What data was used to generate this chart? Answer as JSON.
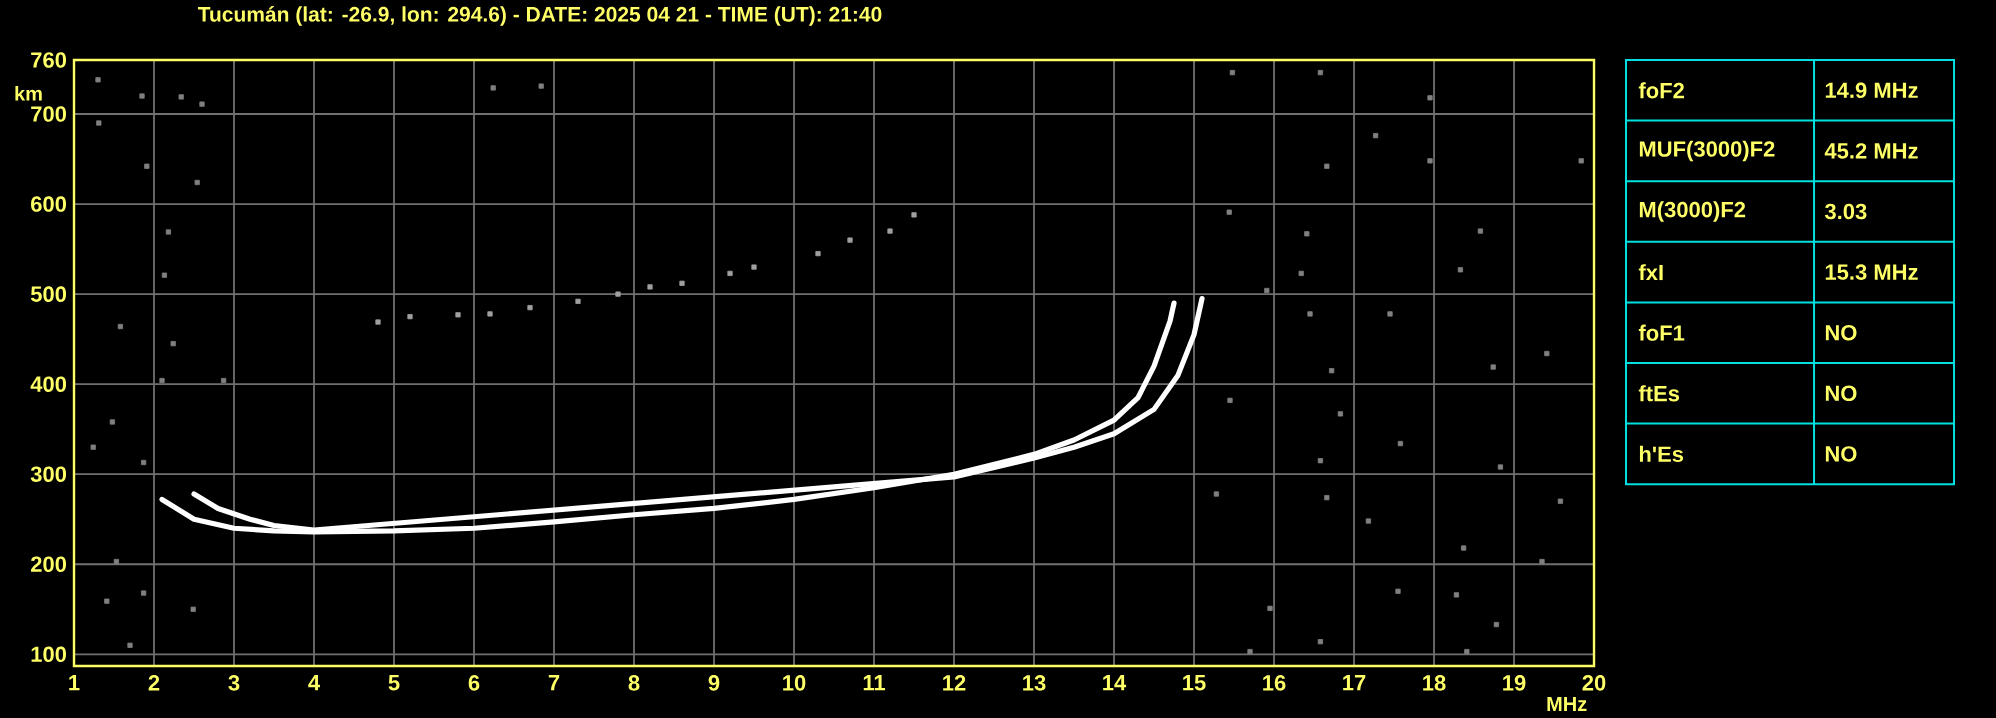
{
  "chart_data": [
    {
      "type": "line",
      "title": "Tucumán (lat: -26.9, lon: 294.6) - DATE: 2025 04 21 - TIME (UT): 21:40",
      "xlabel": "MHz",
      "ylabel": "km",
      "xlim": [
        1,
        20
      ],
      "ylim": [
        87,
        760
      ],
      "xticks": [
        1,
        2,
        3,
        4,
        5,
        6,
        7,
        8,
        9,
        10,
        11,
        12,
        13,
        14,
        15,
        16,
        17,
        18,
        19,
        20
      ],
      "yticks": [
        100,
        200,
        300,
        400,
        500,
        600,
        700,
        760
      ],
      "grid": true,
      "series": [
        {
          "type": "line",
          "color": "#ffffff",
          "line_style": "solid",
          "marker": "none",
          "x": [
            2.1,
            2.5,
            3,
            3.5,
            4,
            5,
            6,
            7,
            8,
            9,
            10,
            11,
            12,
            13,
            13.5,
            14,
            14.3,
            14.5,
            14.7,
            14.75
          ],
          "values": [
            272,
            250,
            240,
            237,
            236,
            237,
            240,
            247,
            255,
            262,
            272,
            285,
            300,
            322,
            338,
            360,
            385,
            420,
            470,
            490
          ]
        },
        {
          "type": "line",
          "color": "#ffffff",
          "line_style": "solid",
          "marker": "none",
          "x": [
            2.5,
            2.8,
            3.2,
            3.5,
            4,
            12,
            13,
            13.5,
            14,
            14.5,
            14.8,
            15,
            15.1
          ],
          "values": [
            278,
            262,
            250,
            243,
            238,
            297,
            318,
            330,
            345,
            372,
            410,
            455,
            495
          ]
        },
        {
          "type": "scatter",
          "color": "#a0a0a0",
          "marker": "square",
          "x": [
            4.8,
            5.2,
            5.8,
            6.2,
            6.7,
            7.3,
            7.8,
            8.2,
            8.6,
            9.2,
            9.5,
            10.3,
            10.7,
            11.2,
            11.5
          ],
          "values": [
            469,
            475,
            477,
            478,
            485,
            492,
            500,
            508,
            512,
            523,
            530,
            545,
            560,
            570,
            588
          ]
        },
        {
          "type": "scatter",
          "color": "#808080",
          "marker": "square",
          "x": [
            1.3,
            1.85,
            2.34,
            2.6,
            1.31,
            1.91,
            2.54,
            2.18,
            2.13,
            1.58,
            2.24,
            2.1,
            2.87,
            1.48,
            1.24,
            1.87,
            1.53,
            1.41,
            1.87,
            1.7,
            2.49,
            6.24,
            6.84,
            15.48,
            16.58,
            17.95,
            17.27,
            17.95,
            19.84,
            16.66,
            15.44,
            16.41,
            18.58,
            16.34,
            18.33,
            15.91,
            17.45,
            16.45,
            19.41,
            16.72,
            18.74,
            15.45,
            16.83,
            17.58,
            16.58,
            18.83,
            15.28,
            16.66,
            19.58,
            17.18,
            18.37,
            19.35,
            17.55,
            15.95,
            18.28,
            18.78,
            16.58,
            18.41,
            15.7
          ],
          "values": [
            738,
            720,
            719,
            711,
            690,
            642,
            624,
            569,
            521,
            464,
            445,
            404,
            404,
            358,
            330,
            313,
            203,
            159,
            168,
            110,
            150,
            729,
            731,
            746,
            746,
            718,
            676,
            648,
            648,
            642,
            591,
            567,
            570,
            523,
            527,
            504,
            478,
            478,
            434,
            415,
            419,
            382,
            367,
            334,
            315,
            308,
            278,
            274,
            270,
            248,
            218,
            203,
            170,
            151,
            166,
            133,
            114,
            103,
            103
          ]
        }
      ]
    },
    {
      "type": "other",
      "annotations": [
        "foF2",
        "14.9 MHz",
        "MUF(3000)F2",
        "45.2 MHz",
        "M(3000)F2",
        "3.03",
        "fxI",
        "15.3 MHz",
        "foF1",
        "NO",
        "ftEs",
        "NO",
        "h'Es",
        "NO"
      ]
    }
  ]
}
